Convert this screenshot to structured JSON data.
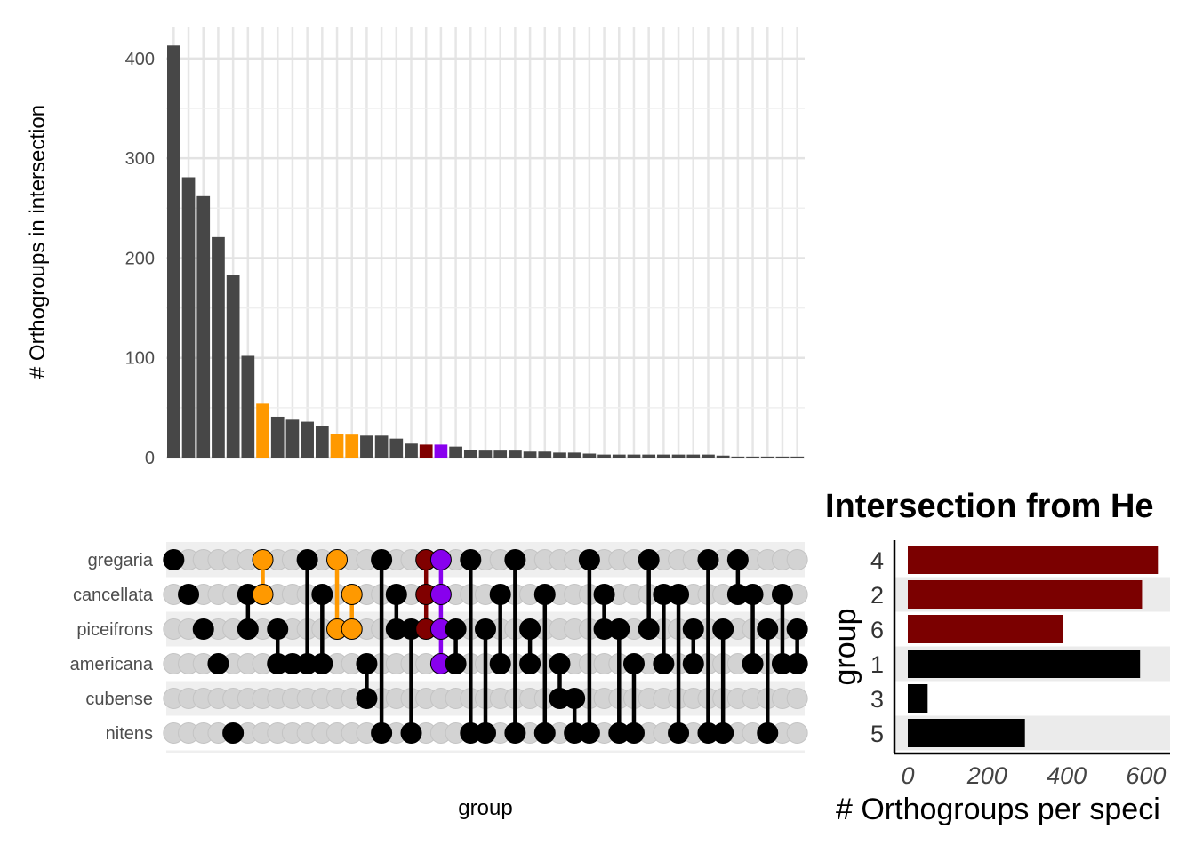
{
  "upset": {
    "y_axis_title": "# Orthogroups in intersection",
    "x_axis_title": "group",
    "y_ticks": [
      "0",
      "100",
      "200",
      "300",
      "400"
    ],
    "sets": [
      "gregaria",
      "cancellata",
      "piceifrons",
      "americana",
      "cubense",
      "nitens"
    ]
  },
  "side": {
    "title": "Intersection from He",
    "x_axis_title": "# Orthogroups per speci",
    "y_axis_title": "group",
    "x_ticks": [
      "0",
      "200",
      "400",
      "600"
    ],
    "categories": [
      "4",
      "2",
      "6",
      "1",
      "3",
      "5"
    ]
  },
  "chart_data": [
    {
      "type": "bar",
      "ylabel": "# Orthogroups in intersection",
      "xlabel": "group",
      "ylim": [
        0,
        420
      ],
      "grid": true,
      "values": [
        413,
        281,
        262,
        221,
        183,
        102,
        54,
        41,
        38,
        36,
        32,
        24,
        23,
        22,
        22,
        19,
        14,
        13,
        13,
        11,
        8,
        7,
        7,
        7,
        6,
        6,
        5,
        5,
        4,
        3,
        3,
        3,
        3,
        3,
        3,
        3,
        3,
        2,
        1,
        1,
        1,
        1,
        1
      ],
      "bar_colors": [
        "#474747",
        "#474747",
        "#474747",
        "#474747",
        "#474747",
        "#474747",
        "#FF9900",
        "#474747",
        "#474747",
        "#474747",
        "#474747",
        "#FF9900",
        "#FF9900",
        "#474747",
        "#474747",
        "#474747",
        "#474747",
        "#800000",
        "#8800EE",
        "#474747",
        "#474747",
        "#474747",
        "#474747",
        "#474747",
        "#474747",
        "#474747",
        "#474747",
        "#474747",
        "#474747",
        "#474747",
        "#474747",
        "#474747",
        "#474747",
        "#474747",
        "#474747",
        "#474747",
        "#474747",
        "#474747",
        "#474747",
        "#474747",
        "#474747",
        "#474747",
        "#474747"
      ],
      "matrix_sets": [
        "gregaria",
        "cancellata",
        "piceifrons",
        "americana",
        "cubense",
        "nitens"
      ],
      "membership": [
        [
          0
        ],
        [
          1
        ],
        [
          2
        ],
        [
          3
        ],
        [
          5
        ],
        [
          1,
          2
        ],
        [
          0,
          1
        ],
        [
          2,
          3
        ],
        [
          3
        ],
        [
          0,
          3
        ],
        [
          1,
          3
        ],
        [
          0,
          2
        ],
        [
          1,
          2
        ],
        [
          3,
          4
        ],
        [
          0,
          5
        ],
        [
          1,
          2
        ],
        [
          2,
          5
        ],
        [
          0,
          1,
          2
        ],
        [
          0,
          1,
          2,
          3
        ],
        [
          2,
          3
        ],
        [
          0,
          5
        ],
        [
          2,
          5
        ],
        [
          1,
          3
        ],
        [
          0,
          5
        ],
        [
          2,
          3
        ],
        [
          1,
          5
        ],
        [
          3,
          4
        ],
        [
          4,
          5
        ],
        [
          0,
          5
        ],
        [
          1,
          2
        ],
        [
          2,
          5
        ],
        [
          3,
          5
        ],
        [
          0,
          2
        ],
        [
          1,
          3
        ],
        [
          1,
          5
        ],
        [
          2,
          3
        ],
        [
          0,
          5
        ],
        [
          2,
          5
        ],
        [
          0,
          1
        ],
        [
          1,
          3
        ],
        [
          2,
          5
        ],
        [
          1,
          3
        ],
        [
          2,
          3
        ]
      ],
      "point_colors": [
        "#000000",
        "#000000",
        "#000000",
        "#000000",
        "#000000",
        "#000000",
        "#FF9900",
        "#000000",
        "#000000",
        "#000000",
        "#000000",
        "#FF9900",
        "#FF9900",
        "#000000",
        "#000000",
        "#000000",
        "#000000",
        "#800000",
        "#8800EE",
        "#000000",
        "#000000",
        "#000000",
        "#000000",
        "#000000",
        "#000000",
        "#000000",
        "#000000",
        "#000000",
        "#000000",
        "#000000",
        "#000000",
        "#000000",
        "#000000",
        "#000000",
        "#000000",
        "#000000",
        "#000000",
        "#000000",
        "#000000",
        "#000000",
        "#000000",
        "#000000",
        "#000000"
      ]
    },
    {
      "type": "bar",
      "orientation": "horizontal",
      "title": "Intersection from He",
      "xlabel": "# Orthogroups per speci",
      "ylabel": "group",
      "xlim": [
        0,
        650
      ],
      "categories": [
        "4",
        "2",
        "6",
        "1",
        "3",
        "5"
      ],
      "values": [
        630,
        590,
        390,
        585,
        50,
        295
      ],
      "colors": [
        "#7B0000",
        "#7B0000",
        "#7B0000",
        "#000000",
        "#000000",
        "#000000"
      ]
    }
  ]
}
